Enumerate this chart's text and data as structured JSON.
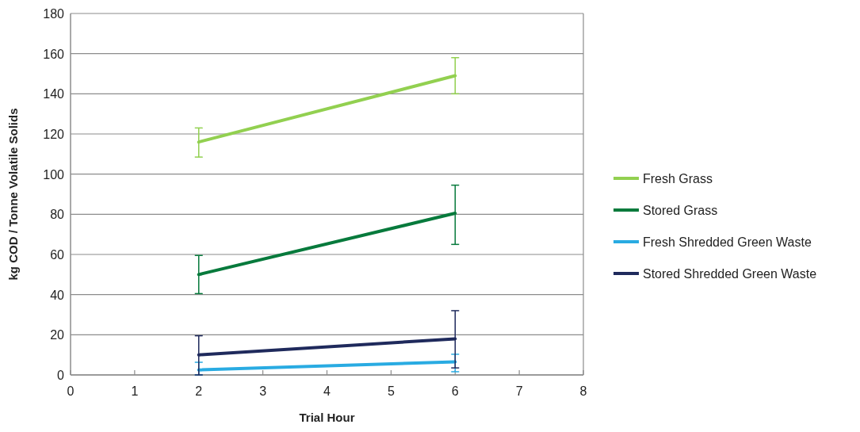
{
  "chart_data": {
    "type": "line",
    "xlabel": "Trial Hour",
    "ylabel": "kg COD / Tonne Volatile Solids",
    "x": [
      2,
      6
    ],
    "xlim": [
      0,
      8
    ],
    "xticks": [
      0,
      1,
      2,
      3,
      4,
      5,
      6,
      7,
      8
    ],
    "ylim": [
      0,
      180
    ],
    "yticks": [
      0,
      20,
      40,
      60,
      80,
      100,
      120,
      140,
      160,
      180
    ],
    "grid": "y",
    "legend": "right",
    "marker": "none",
    "line_style": "solid",
    "series": [
      {
        "name": "Fresh Grass",
        "color": "#92d050",
        "values": [
          116,
          149
        ],
        "errors": [
          [
            108.5,
            123
          ],
          [
            140,
            158
          ]
        ]
      },
      {
        "name": "Stored Grass",
        "color": "#077a3c",
        "values": [
          50,
          80.5
        ],
        "errors": [
          [
            40.5,
            59.5
          ],
          [
            65,
            94.5
          ]
        ]
      },
      {
        "name": "Fresh Shredded Green Waste",
        "color": "#29abe2",
        "values": [
          2.5,
          6.5
        ],
        "errors": [
          [
            0,
            6.3
          ],
          [
            1.6,
            10.3
          ]
        ]
      },
      {
        "name": "Stored Shredded Green Waste",
        "color": "#1f2a5c",
        "values": [
          10,
          18
        ],
        "errors": [
          [
            0,
            19.5
          ],
          [
            3.5,
            32
          ]
        ]
      }
    ]
  }
}
